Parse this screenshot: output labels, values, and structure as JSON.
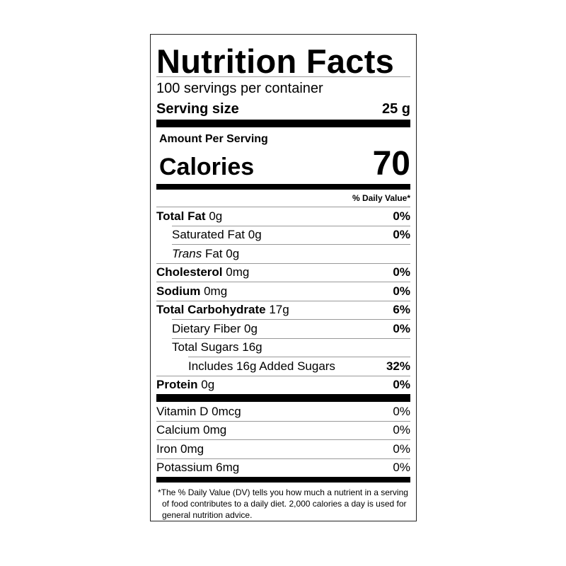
{
  "title": "Nutrition Facts",
  "servings_per_container": "100 servings per container",
  "serving_size": {
    "label": "Serving size",
    "value": "25 g"
  },
  "amount_per_serving": "Amount Per Serving",
  "calories": {
    "label": "Calories",
    "value": "70"
  },
  "daily_value_header": "% Daily Value*",
  "nutrients": [
    {
      "name": "Total Fat",
      "amount": "0g",
      "dv": "0%",
      "bold": true,
      "indent": 0
    },
    {
      "name": "Saturated Fat",
      "amount": "0g",
      "dv": "0%",
      "bold": false,
      "indent": 1
    },
    {
      "name": "Trans",
      "name_suffix": "Fat",
      "amount": "0g",
      "dv": "",
      "bold": false,
      "indent": 1,
      "italic_prefix": true
    },
    {
      "name": "Cholesterol",
      "amount": "0mg",
      "dv": "0%",
      "bold": true,
      "indent": 0
    },
    {
      "name": "Sodium",
      "amount": "0mg",
      "dv": "0%",
      "bold": true,
      "indent": 0
    },
    {
      "name": "Total Carbohydrate",
      "amount": "17g",
      "dv": "6%",
      "bold": true,
      "indent": 0
    },
    {
      "name": "Dietary Fiber",
      "amount": "0g",
      "dv": "0%",
      "bold": false,
      "indent": 1
    },
    {
      "name": "Total Sugars",
      "amount": "16g",
      "dv": "",
      "bold": false,
      "indent": 1
    },
    {
      "name": "Includes 16g Added Sugars",
      "amount": "",
      "dv": "32%",
      "bold": false,
      "indent": 2
    },
    {
      "name": "Protein",
      "amount": "0g",
      "dv": "0%",
      "bold": true,
      "indent": 0
    }
  ],
  "vitamins": [
    {
      "name": "Vitamin D",
      "amount": "0mcg",
      "dv": "0%"
    },
    {
      "name": "Calcium",
      "amount": "0mg",
      "dv": "0%"
    },
    {
      "name": "Iron",
      "amount": "0mg",
      "dv": "0%"
    },
    {
      "name": "Potassium",
      "amount": "6mg",
      "dv": "0%"
    }
  ],
  "footnote": {
    "mark": "*",
    "text": "The % Daily Value (DV) tells you how much a nutrient in a serving of food contributes to a daily diet. 2,000 calories a day is used for general nutrition advice."
  }
}
